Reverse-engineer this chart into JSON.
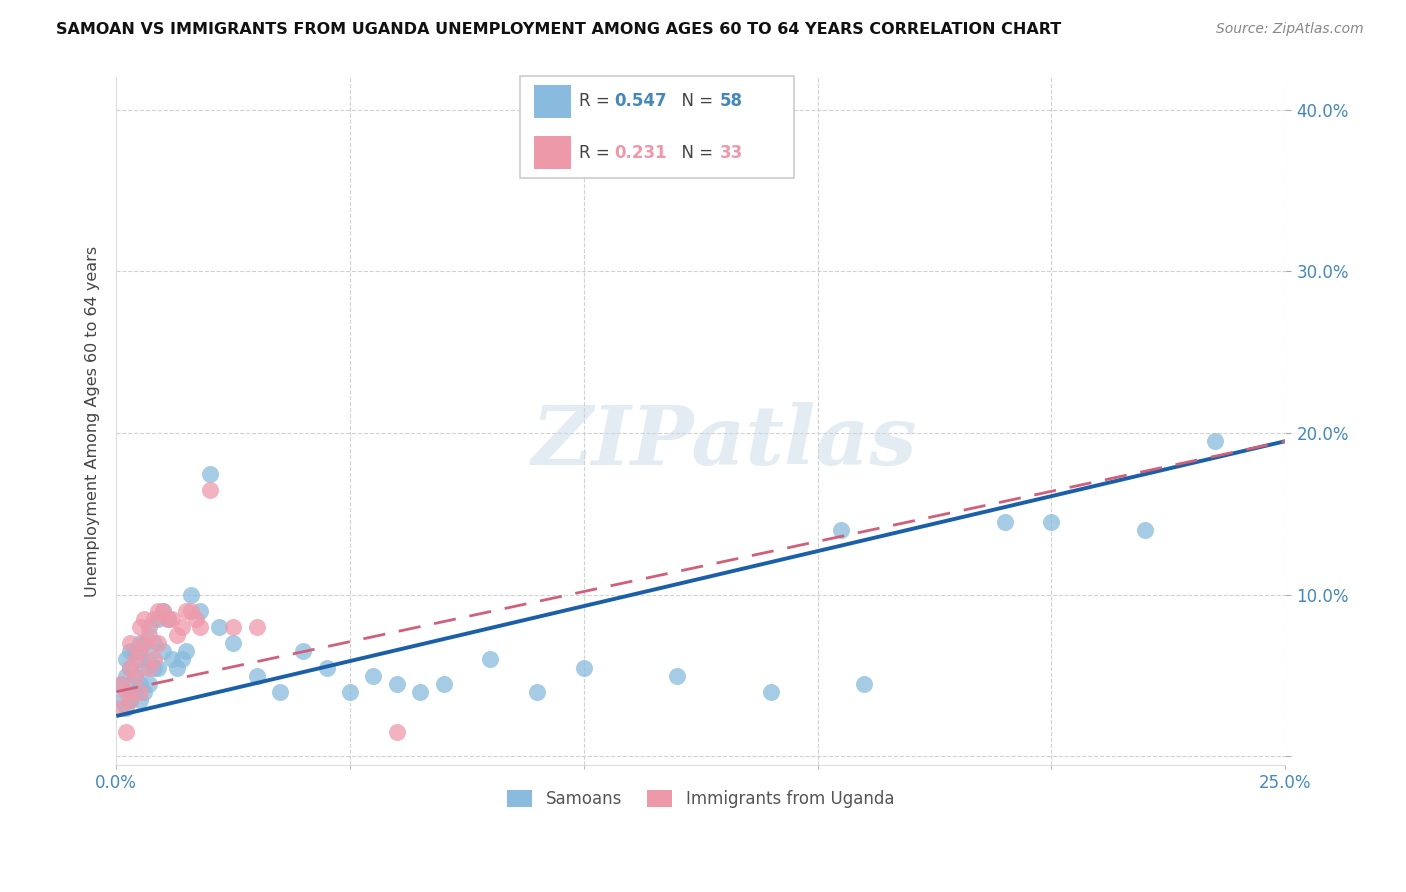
{
  "title": "SAMOAN VS IMMIGRANTS FROM UGANDA UNEMPLOYMENT AMONG AGES 60 TO 64 YEARS CORRELATION CHART",
  "source": "Source: ZipAtlas.com",
  "ylabel": "Unemployment Among Ages 60 to 64 years",
  "xlim": [
    0.0,
    0.25
  ],
  "ylim": [
    -0.005,
    0.42
  ],
  "xticks": [
    0.0,
    0.05,
    0.1,
    0.15,
    0.2,
    0.25
  ],
  "yticks": [
    0.0,
    0.1,
    0.2,
    0.3,
    0.4
  ],
  "xtick_labels": [
    "0.0%",
    "",
    "",
    "",
    "",
    "25.0%"
  ],
  "ytick_labels": [
    "",
    "10.0%",
    "20.0%",
    "30.0%",
    "40.0%"
  ],
  "samoan_color": "#88bbdd",
  "uganda_color": "#ee99aa",
  "samoan_line_color": "#1a5fa8",
  "uganda_line_color": "#d0607a",
  "samoans_label": "Samoans",
  "uganda_label": "Immigrants from Uganda",
  "R_samoan": "0.547",
  "N_samoan": "58",
  "R_uganda": "0.231",
  "N_uganda": "33",
  "tick_color": "#4488bb",
  "grid_color": "#cccccc",
  "samoan_x": [
    0.001,
    0.001,
    0.002,
    0.002,
    0.002,
    0.003,
    0.003,
    0.003,
    0.003,
    0.004,
    0.004,
    0.004,
    0.005,
    0.005,
    0.005,
    0.005,
    0.006,
    0.006,
    0.006,
    0.007,
    0.007,
    0.007,
    0.008,
    0.008,
    0.009,
    0.009,
    0.01,
    0.01,
    0.011,
    0.012,
    0.013,
    0.014,
    0.015,
    0.016,
    0.018,
    0.02,
    0.022,
    0.025,
    0.03,
    0.035,
    0.04,
    0.045,
    0.05,
    0.055,
    0.06,
    0.065,
    0.07,
    0.08,
    0.09,
    0.1,
    0.12,
    0.14,
    0.155,
    0.16,
    0.19,
    0.2,
    0.22,
    0.235
  ],
  "samoan_y": [
    0.035,
    0.045,
    0.03,
    0.05,
    0.06,
    0.035,
    0.04,
    0.055,
    0.065,
    0.04,
    0.05,
    0.065,
    0.035,
    0.045,
    0.06,
    0.07,
    0.04,
    0.055,
    0.07,
    0.045,
    0.06,
    0.08,
    0.055,
    0.07,
    0.055,
    0.085,
    0.065,
    0.09,
    0.085,
    0.06,
    0.055,
    0.06,
    0.065,
    0.1,
    0.09,
    0.175,
    0.08,
    0.07,
    0.05,
    0.04,
    0.065,
    0.055,
    0.04,
    0.05,
    0.045,
    0.04,
    0.045,
    0.06,
    0.04,
    0.055,
    0.05,
    0.04,
    0.14,
    0.045,
    0.145,
    0.145,
    0.14,
    0.195
  ],
  "uganda_x": [
    0.001,
    0.001,
    0.002,
    0.002,
    0.003,
    0.003,
    0.003,
    0.004,
    0.004,
    0.005,
    0.005,
    0.005,
    0.006,
    0.006,
    0.007,
    0.007,
    0.008,
    0.008,
    0.009,
    0.009,
    0.01,
    0.011,
    0.012,
    0.013,
    0.014,
    0.015,
    0.016,
    0.017,
    0.018,
    0.02,
    0.025,
    0.03,
    0.06
  ],
  "uganda_y": [
    0.03,
    0.045,
    0.015,
    0.04,
    0.035,
    0.055,
    0.07,
    0.05,
    0.06,
    0.04,
    0.065,
    0.08,
    0.07,
    0.085,
    0.055,
    0.075,
    0.06,
    0.085,
    0.07,
    0.09,
    0.09,
    0.085,
    0.085,
    0.075,
    0.08,
    0.09,
    0.09,
    0.085,
    0.08,
    0.165,
    0.08,
    0.08,
    0.015
  ],
  "samoan_line_start_y": 0.025,
  "samoan_line_end_y": 0.195,
  "uganda_line_start_y": 0.04,
  "uganda_line_end_y": 0.195
}
